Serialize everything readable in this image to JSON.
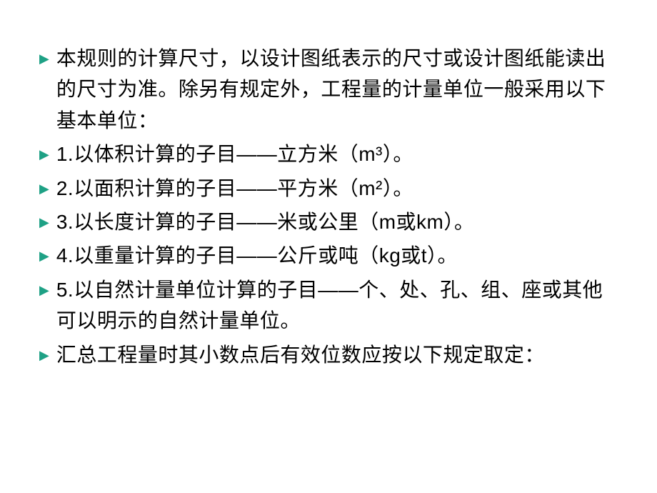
{
  "bullets": [
    "本规则的计算尺寸，以设计图纸表示的尺寸或设计图纸能读出的尺寸为准。除另有规定外，工程量的计量单位一般采用以下基本单位：",
    "1.以体积计算的子目——立方米（m³）。",
    "2.以面积计算的子目——平方米（m²）。",
    "3.以长度计算的子目——米或公里（m或km）。",
    "4.以重量计算的子目——公斤或吨（kg或t）。",
    "5.以自然计量单位计算的子目——个、处、孔、组、座或其他可以明示的自然计量单位。",
    "汇总工程量时其小数点后有效位数应按以下规定取定："
  ],
  "marker_color": "#1ea185",
  "text_color": "#000000",
  "background_color": "#ffffff",
  "font_size": 28
}
